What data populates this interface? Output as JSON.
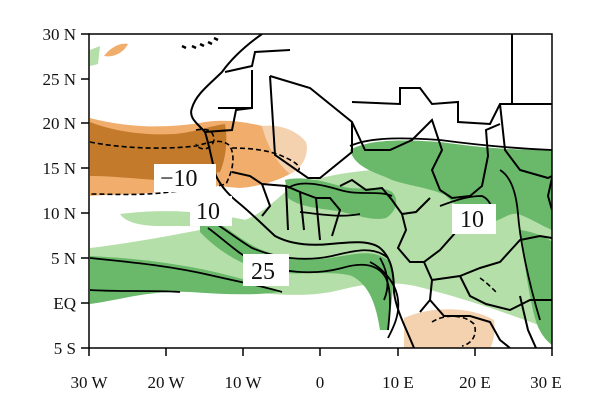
{
  "map": {
    "lat_ticks": [
      "30 N",
      "25 N",
      "20 N",
      "15 N",
      "10 N",
      "5 N",
      "EQ",
      "5 S"
    ],
    "lon_ticks": [
      "30 W",
      "20 W",
      "10 W",
      "0",
      "10 E",
      "20 E",
      "30 E"
    ],
    "extent": {
      "lon": [
        -30,
        30
      ],
      "lat": [
        -5,
        30
      ]
    },
    "contour_labels": [
      {
        "text": "−10",
        "lon": -15,
        "lat": 14.5
      },
      {
        "text": "10",
        "lon": -14.3,
        "lat": 10
      },
      {
        "text": "25",
        "lon": -7,
        "lat": 4.2
      },
      {
        "text": "10",
        "lon": 19.5,
        "lat": 9.6
      }
    ],
    "colors": {
      "positive_strong": "#6ab96a",
      "positive_weak": "#b5dfa8",
      "negative_strong": "#c47a2b",
      "negative_weak": "#f0ad6c",
      "negative_faint": "#f4d2b0",
      "outline": "#000000"
    }
  }
}
